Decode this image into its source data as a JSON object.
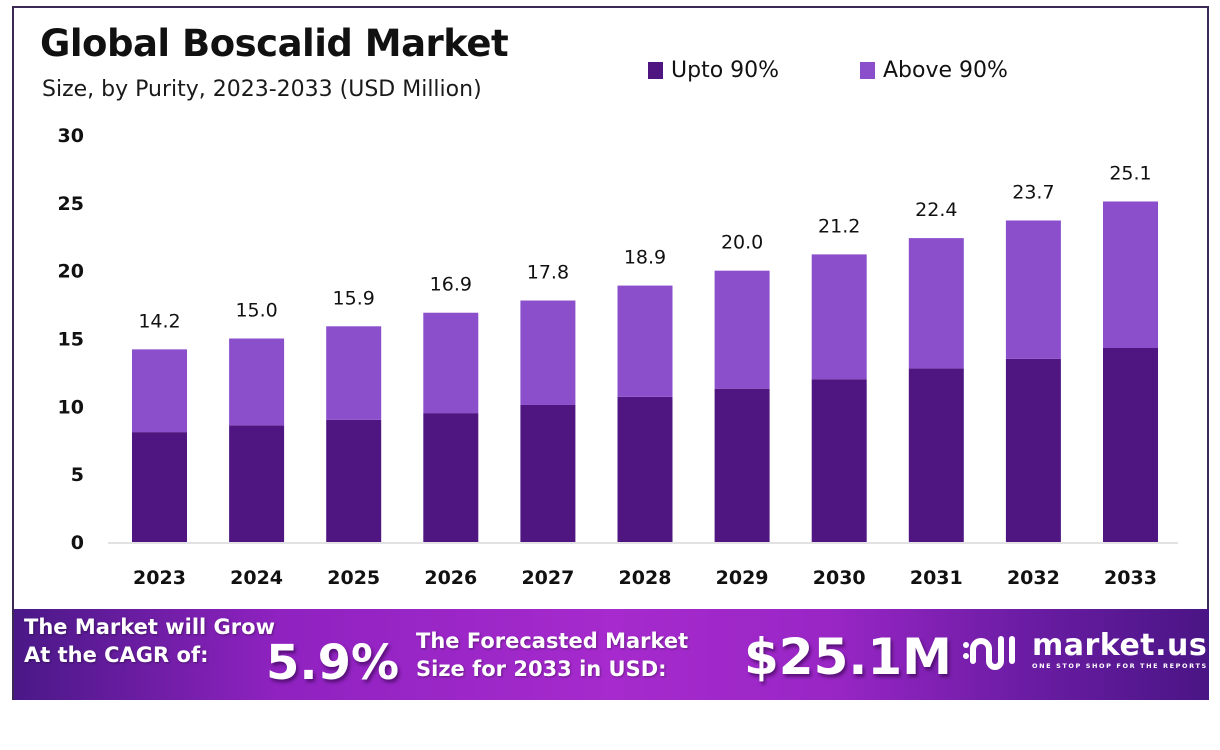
{
  "header": {
    "title": "Global Boscalid Market",
    "subtitle": "Size, by Purity, 2023-2033 (USD Million)"
  },
  "legend": [
    {
      "label": "Upto 90%",
      "color": "#4f1682"
    },
    {
      "label": "Above 90%",
      "color": "#8b4fcc"
    }
  ],
  "chart_data": {
    "type": "bar",
    "stacked": true,
    "title": "Global Boscalid Market",
    "subtitle": "Size, by Purity, 2023-2033 (USD Million)",
    "xlabel": "",
    "ylabel": "",
    "categories": [
      "2023",
      "2024",
      "2025",
      "2026",
      "2027",
      "2028",
      "2029",
      "2030",
      "2031",
      "2032",
      "2033"
    ],
    "series": [
      {
        "name": "Upto 90%",
        "color": "#4f1682",
        "values": [
          8.1,
          8.6,
          9.0,
          9.5,
          10.1,
          10.7,
          11.3,
          12.0,
          12.8,
          13.5,
          14.3
        ]
      },
      {
        "name": "Above 90%",
        "color": "#8b4fcc",
        "values": [
          6.1,
          6.4,
          6.9,
          7.4,
          7.7,
          8.2,
          8.7,
          9.2,
          9.6,
          10.2,
          10.8
        ]
      }
    ],
    "totals": [
      14.2,
      15.0,
      15.9,
      16.9,
      17.8,
      18.9,
      20.0,
      21.2,
      22.4,
      23.7,
      25.1
    ],
    "total_labels": [
      "14.2",
      "15.0",
      "15.9",
      "16.9",
      "17.8",
      "18.9",
      "20.0",
      "21.2",
      "22.4",
      "23.7",
      "25.1"
    ],
    "ylim": [
      0,
      30
    ],
    "yticks": [
      0,
      5,
      10,
      15,
      20,
      25,
      30
    ],
    "grid": false,
    "legend_position": "top-right"
  },
  "banner": {
    "cagr_line1": "The Market will Grow",
    "cagr_line2": "At the CAGR of:",
    "cagr_value": "5.9%",
    "forecast_line1": "The Forecasted Market",
    "forecast_line2": "Size for 2033 in USD:",
    "forecast_value": "$25.1M",
    "logo_name": "market.us",
    "logo_tagline": "ONE STOP SHOP FOR THE REPORTS"
  }
}
